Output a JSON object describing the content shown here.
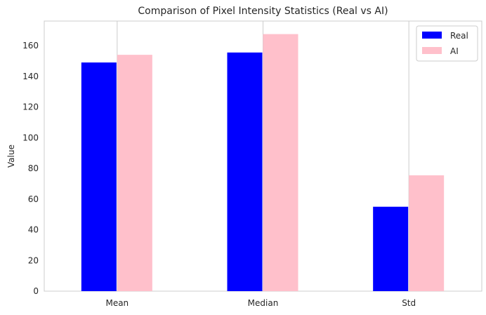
{
  "chart_data": {
    "type": "bar",
    "title": "Comparison of Pixel Intensity Statistics (Real vs AI)",
    "xlabel": "",
    "ylabel": "Value",
    "categories": [
      "Mean",
      "Median",
      "Std"
    ],
    "series": [
      {
        "name": "Real",
        "color": "#0000ff",
        "values": [
          149,
          155.5,
          55
        ]
      },
      {
        "name": "AI",
        "color": "#ffc0cb",
        "values": [
          154,
          167.5,
          75.5
        ]
      }
    ],
    "ylim": [
      0,
      176
    ],
    "yticks": [
      0,
      20,
      40,
      60,
      80,
      100,
      120,
      140,
      160
    ],
    "grid": true,
    "legend_position": "top-right"
  }
}
